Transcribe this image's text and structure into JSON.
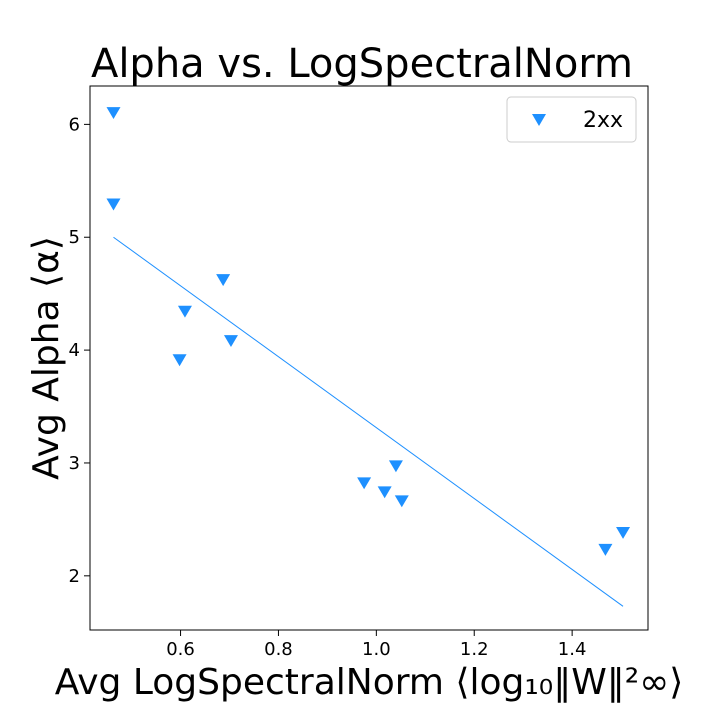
{
  "chart_data": {
    "type": "scatter",
    "title": "Alpha vs. LogSpectralNorm",
    "xlabel": "Avg LogSpectralNorm ⟨log₁₀‖W‖²∞⟩",
    "ylabel": "Avg Alpha ⟨α⟩",
    "xlim": [
      0.415,
      1.555
    ],
    "ylim": [
      1.52,
      6.34
    ],
    "xticks": [
      0.6,
      0.8,
      1.0,
      1.2,
      1.4
    ],
    "xtick_labels": [
      "0.6",
      "0.8",
      "1.0",
      "1.2",
      "1.4"
    ],
    "yticks": [
      2,
      3,
      4,
      5,
      6
    ],
    "ytick_labels": [
      "2",
      "3",
      "4",
      "5",
      "6"
    ],
    "grid": false,
    "legend_position": "top-right",
    "series": [
      {
        "name": "2xx",
        "marker": "triangle-down",
        "color": "#1e90ff",
        "points": [
          {
            "x": 0.463,
            "y": 6.1
          },
          {
            "x": 0.463,
            "y": 5.29
          },
          {
            "x": 0.598,
            "y": 3.91
          },
          {
            "x": 0.609,
            "y": 4.34
          },
          {
            "x": 0.687,
            "y": 4.62
          },
          {
            "x": 0.703,
            "y": 4.08
          },
          {
            "x": 0.975,
            "y": 2.82
          },
          {
            "x": 1.017,
            "y": 2.74
          },
          {
            "x": 1.04,
            "y": 2.97
          },
          {
            "x": 1.052,
            "y": 2.66
          },
          {
            "x": 1.468,
            "y": 2.23
          },
          {
            "x": 1.504,
            "y": 2.38
          }
        ]
      }
    ],
    "fit_line": {
      "color": "#1e90ff",
      "x": [
        0.463,
        1.504
      ],
      "y": [
        5.0,
        1.73
      ]
    }
  }
}
